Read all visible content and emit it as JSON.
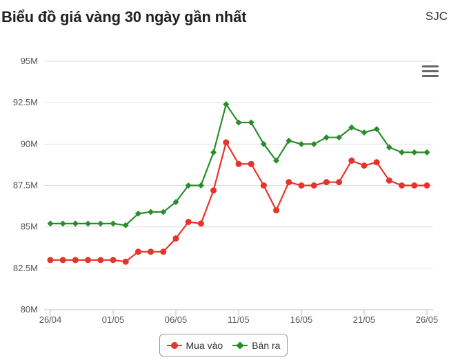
{
  "header": {
    "title": "Biểu đồ giá vàng 30 ngày gần nhất",
    "brand": "SJC"
  },
  "menu": {
    "icon": "hamburger-menu-icon"
  },
  "colors": {
    "buy": "#e8332a",
    "sell": "#2a8c2a",
    "grid": "#e0e0e0",
    "axis": "#bdbdbd"
  },
  "chart_data": {
    "type": "line",
    "title": "Biểu đồ giá vàng 30 ngày gần nhất",
    "xlabel": "",
    "ylabel": "",
    "ylim": [
      80,
      95
    ],
    "y_ticks": [
      "80M",
      "82.5M",
      "85M",
      "87.5M",
      "90M",
      "92.5M",
      "95M"
    ],
    "x_tick_labels": [
      {
        "index": 0,
        "label": "26/04"
      },
      {
        "index": 5,
        "label": "01/05"
      },
      {
        "index": 10,
        "label": "06/05"
      },
      {
        "index": 15,
        "label": "11/05"
      },
      {
        "index": 20,
        "label": "16/05"
      },
      {
        "index": 25,
        "label": "21/05"
      },
      {
        "index": 30,
        "label": "26/05"
      }
    ],
    "x": [
      "26/04",
      "27/04",
      "28/04",
      "29/04",
      "30/04",
      "01/05",
      "02/05",
      "03/05",
      "04/05",
      "05/05",
      "06/05",
      "07/05",
      "08/05",
      "09/05",
      "10/05",
      "11/05",
      "12/05",
      "13/05",
      "14/05",
      "15/05",
      "16/05",
      "17/05",
      "18/05",
      "19/05",
      "20/05",
      "21/05",
      "22/05",
      "23/05",
      "24/05",
      "25/05",
      "26/05"
    ],
    "grid": true,
    "legend_position": "bottom-center",
    "series": [
      {
        "name": "Mua vào",
        "marker": "circle",
        "values": [
          83.0,
          83.0,
          83.0,
          83.0,
          83.0,
          83.0,
          82.9,
          83.5,
          83.5,
          83.5,
          84.3,
          85.3,
          85.2,
          87.2,
          90.1,
          88.8,
          88.8,
          87.5,
          86.0,
          87.7,
          87.5,
          87.5,
          87.7,
          87.7,
          89.0,
          88.7,
          88.9,
          87.8,
          87.5,
          87.5,
          87.5
        ]
      },
      {
        "name": "Bán ra",
        "marker": "diamond",
        "values": [
          85.2,
          85.2,
          85.2,
          85.2,
          85.2,
          85.2,
          85.1,
          85.8,
          85.9,
          85.9,
          86.5,
          87.5,
          87.5,
          89.5,
          92.4,
          91.3,
          91.3,
          90.0,
          89.0,
          90.2,
          90.0,
          90.0,
          90.4,
          90.4,
          91.0,
          90.7,
          90.9,
          89.8,
          89.5,
          89.5,
          89.5
        ]
      }
    ]
  },
  "legend": {
    "buy_label": "Mua vào",
    "sell_label": "Bán ra"
  }
}
